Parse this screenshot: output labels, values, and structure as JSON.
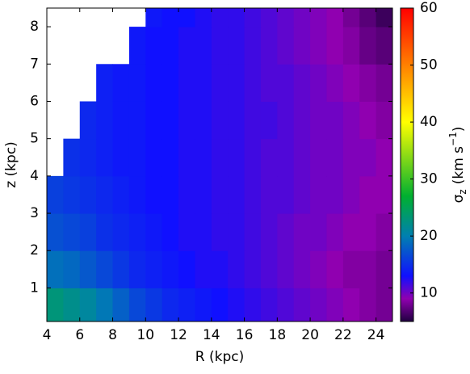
{
  "chart_data": {
    "type": "heatmap",
    "xlabel": "R (kpc)",
    "ylabel": "z (kpc)",
    "colorbar_label": {
      "symbol": "σ",
      "sub": "z",
      "unit": "(km s",
      "sup": "−1",
      "close": ")"
    },
    "xlim": [
      4,
      25
    ],
    "ylim": [
      0.1,
      8.5
    ],
    "xticks": [
      4,
      6,
      8,
      10,
      12,
      14,
      16,
      18,
      20,
      22,
      24
    ],
    "yticks": [
      1,
      2,
      3,
      4,
      5,
      6,
      7,
      8
    ],
    "xbins": [
      4,
      5,
      6,
      7,
      8,
      9,
      10,
      11,
      12,
      13,
      14,
      15,
      16,
      17,
      18,
      19,
      20,
      21,
      22,
      23,
      24,
      25
    ],
    "ybins": [
      0.1,
      1,
      2,
      3,
      4,
      5,
      6,
      7,
      8,
      8.5
    ],
    "values": [
      [
        23,
        22,
        21,
        19.5,
        18,
        16.5,
        15.5,
        14.5,
        14,
        13.5,
        13,
        12.5,
        12,
        11.5,
        11,
        10.5,
        10,
        9.5,
        9,
        8.5,
        8
      ],
      [
        19,
        18.5,
        17.5,
        16.5,
        15.5,
        14.5,
        14,
        13.5,
        13,
        12.5,
        12.5,
        12,
        11.5,
        11,
        10.5,
        10,
        9.5,
        9,
        8.5,
        8.5,
        8
      ],
      [
        17,
        16.5,
        16,
        15,
        14.5,
        14,
        13.5,
        13,
        12.5,
        12.5,
        12,
        12,
        11.5,
        11,
        10.5,
        10,
        10,
        9.5,
        9,
        9,
        8.5
      ],
      [
        16,
        15.5,
        15,
        14.5,
        14,
        13.5,
        13,
        13,
        12.5,
        12.5,
        12,
        12,
        11.5,
        11,
        11,
        10.5,
        10,
        10,
        9.5,
        9,
        9
      ],
      [
        null,
        15,
        14.5,
        14,
        13.5,
        13.5,
        13,
        13,
        12.5,
        12.5,
        12,
        12,
        11.5,
        11,
        11,
        10.5,
        10,
        10,
        9.5,
        9.5,
        9
      ],
      [
        null,
        null,
        14.5,
        14,
        13.5,
        13.5,
        13,
        13,
        12.5,
        12.5,
        12,
        12,
        11.5,
        11.5,
        11,
        10.5,
        10,
        10,
        9.5,
        9,
        8.5
      ],
      [
        null,
        null,
        null,
        14,
        13.5,
        13.5,
        13,
        13,
        12.5,
        12.5,
        12,
        12,
        11.5,
        11,
        11,
        10.5,
        10,
        9.5,
        9,
        8.5,
        8
      ],
      [
        null,
        null,
        null,
        null,
        null,
        13.5,
        13,
        13,
        12.5,
        12.5,
        12,
        12,
        11.5,
        11,
        10.5,
        10,
        9.5,
        9,
        8.5,
        7.5,
        7
      ],
      [
        null,
        null,
        null,
        null,
        null,
        null,
        13.5,
        13,
        13,
        12.5,
        12,
        12,
        11.5,
        11,
        10.5,
        10,
        9.5,
        9,
        8,
        7,
        6
      ]
    ],
    "clim": [
      5,
      60
    ],
    "cticks": [
      10,
      20,
      30,
      40,
      50,
      60
    ],
    "colorscale": [
      {
        "value": 5,
        "color": "#200040"
      },
      {
        "value": 9,
        "color": "#9000b0"
      },
      {
        "value": 13,
        "color": "#1010ff"
      },
      {
        "value": 20,
        "color": "#0080b0"
      },
      {
        "value": 27,
        "color": "#00b030"
      },
      {
        "value": 40,
        "color": "#ffff00"
      },
      {
        "value": 50,
        "color": "#ff8000"
      },
      {
        "value": 60,
        "color": "#ff0000"
      }
    ]
  }
}
